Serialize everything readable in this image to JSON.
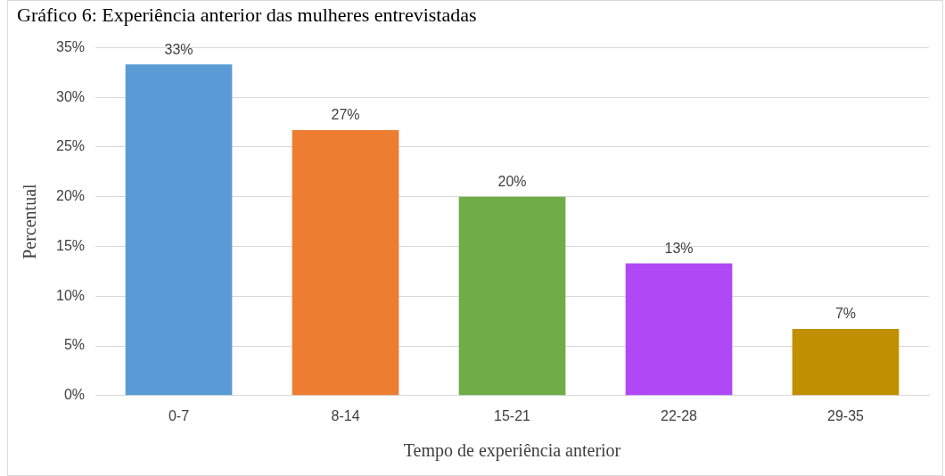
{
  "chart_data": {
    "type": "bar",
    "title": "Gráfico 6: Experiência anterior das mulheres entrevistadas",
    "xlabel": "Tempo de experiência anterior",
    "ylabel": "Percentual",
    "categories": [
      "0-7",
      "8-14",
      "15-21",
      "22-28",
      "29-35"
    ],
    "values": [
      33.3,
      26.7,
      20,
      13.3,
      6.7
    ],
    "colors": [
      "#5b9bd5",
      "#ed7d31",
      "#70ad47",
      "#b048f5",
      "#c09000"
    ],
    "value_labels": [
      "33%",
      "27%",
      "20%",
      "13%",
      "7%"
    ],
    "ylim": [
      0,
      35
    ],
    "yticks": [
      {
        "value": 0,
        "label": "0%"
      },
      {
        "value": 5,
        "label": "5%"
      },
      {
        "value": 10,
        "label": "10%"
      },
      {
        "value": 15,
        "label": "15%"
      },
      {
        "value": 20,
        "label": "20%"
      },
      {
        "value": 25,
        "label": "25%"
      },
      {
        "value": 30,
        "label": "30%"
      },
      {
        "value": 35,
        "label": "35%"
      }
    ],
    "grid": "y",
    "legend": false
  }
}
